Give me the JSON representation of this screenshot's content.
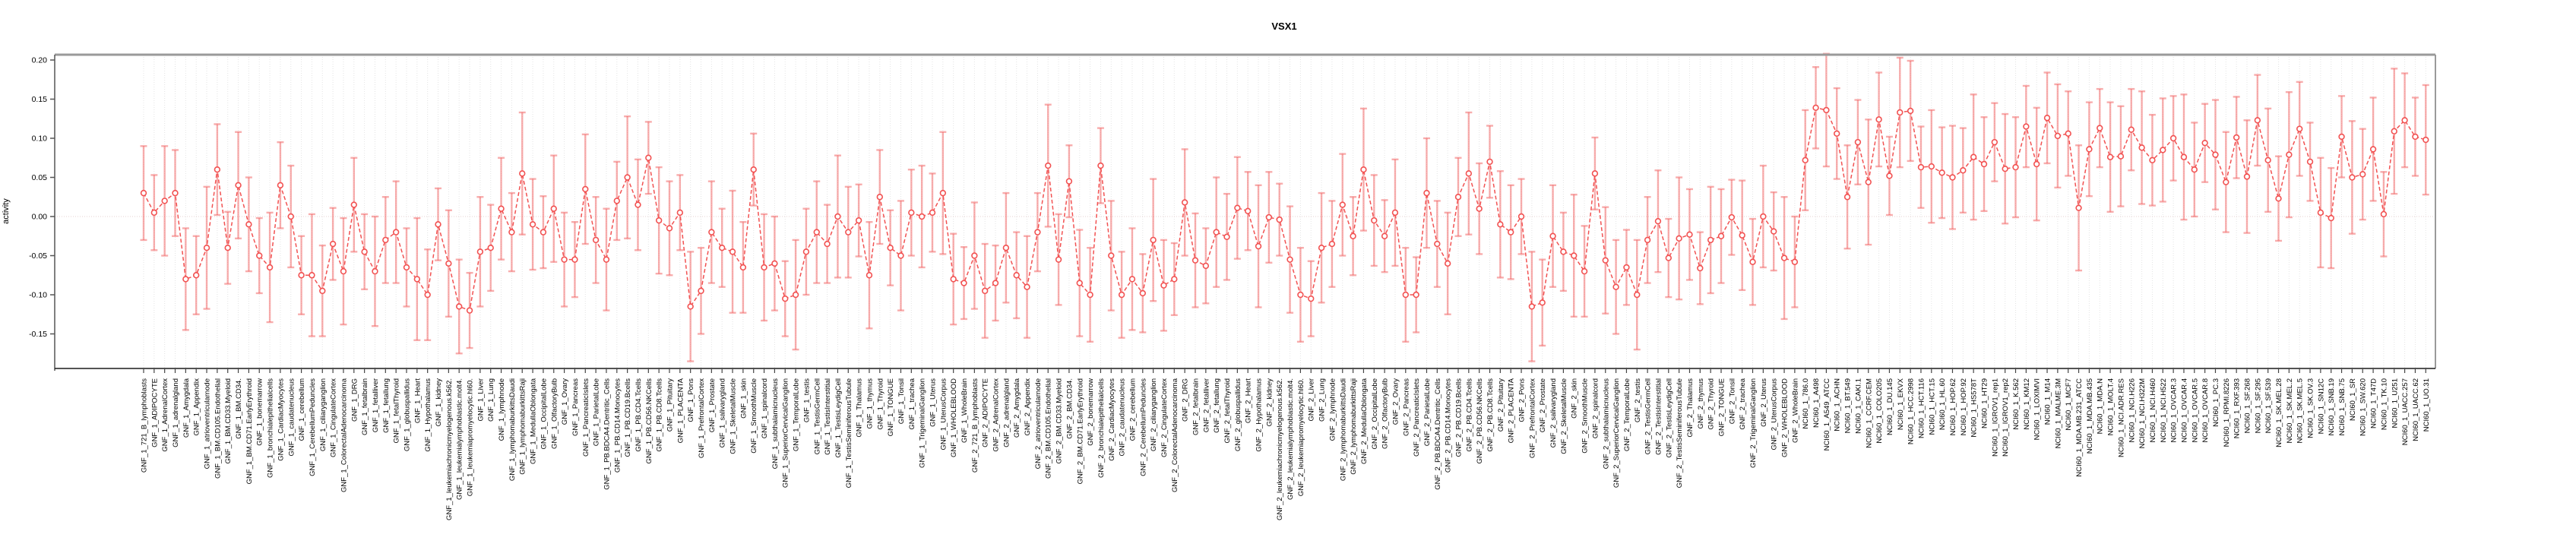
{
  "title": "VSX1",
  "chart_data": {
    "type": "scatter",
    "title": "VSX1",
    "xlabel": "",
    "ylabel": "activity",
    "ylim": [
      -0.175,
      0.205
    ],
    "yticks": [
      -0.15,
      -0.1,
      -0.05,
      0.0,
      0.05,
      0.1,
      0.15,
      0.2
    ],
    "grid": "vertical dotted gridline per category; dotted horizontal line at 0",
    "legend_position": "none",
    "marker": "open-circle with error bars, dashed connecting line",
    "point_color": "#f25252",
    "errorbar_color": "rgba(242,106,106,0.55)",
    "gridline_color": "#e4e4e4",
    "zero_line_color": "#e6d0d0",
    "categories": [
      "GNF_1_721_B_lymphoblasts",
      "GNF_1_ADIPOCYTE",
      "GNF_1_AdrenalCortex",
      "GNF_1_adrenalgland",
      "GNF_1_Amygdala",
      "GNF_1_Appendix",
      "GNF_1_atrioventricularnode",
      "GNF_1_BM.CD105.Endothelial",
      "GNF_1_BM.CD33.Myeloid",
      "GNF_1_BM.CD34.",
      "GNF_1_BM.CD71.EarlyErythroid",
      "GNF_1_bonemarrow",
      "GNF_1_bronchialepithelialcells",
      "GNF_1_CardiacMyocytes",
      "GNF_1_caudatenucleus",
      "GNF_1_cerebellum",
      "GNF_1_CerebellumPeduncles",
      "GNF_1_ciliaryganglion",
      "GNF_1_CingulateCortex",
      "GNF_1_ColorectalAdenocarcinoma",
      "GNF_1_DRG",
      "GNF_1_fetalbrain",
      "GNF_1_fetalliver",
      "GNF_1_fetallung",
      "GNF_1_fetalThyroid",
      "GNF_1_globuspallidus",
      "GNF_1_Heart",
      "GNF_1_Hypothalamus",
      "GNF_1_kidney",
      "GNF_1_leukemiachronicmyelogenous.k562.",
      "GNF_1_leukemialymphoblastic.molt4.",
      "GNF_1_leukemiapromyelocytic.hl60.",
      "GNF_1_Liver",
      "GNF_1_Lung",
      "GNF_1_lymphnode",
      "GNF_1_lymphomaburkittsDaudi",
      "GNF_1_lymphomaburkittsRaji",
      "GNF_1_MedullaOblongata",
      "GNF_1_OccipitalLobe",
      "GNF_1_OlfactoryBulb",
      "GNF_1_Ovary",
      "GNF_1_Pancreas",
      "GNF_1_PancreaticIslets",
      "GNF_1_ParietalLobe",
      "GNF_1_PB.BDCA4.Dentritic_Cells",
      "GNF_1_PB.CD14.Monocytes",
      "GNF_1_PB.CD19.Bcells",
      "GNF_1_PB.CD4.Tcells",
      "GNF_1_PB.CD56.NKCells",
      "GNF_1_PB.CD8.Tcells",
      "GNF_1_Pituitary",
      "GNF_1_PLACENTA",
      "GNF_1_Pons",
      "GNF_1_PrefrontalCortex",
      "GNF_1_Prostate",
      "GNF_1_salivarygland",
      "GNF_1_SkeletalMuscle",
      "GNF_1_skin",
      "GNF_1_SmoothMuscle",
      "GNF_1_spinalcord",
      "GNF_1_subthalamicnucleus",
      "GNF_1_SuperiorCervicalGanglion",
      "GNF_1_TemporalLobe",
      "GNF_1_testis",
      "GNF_1_TestisGermCell",
      "GNF_1_TestisInterstitial",
      "GNF_1_TestisLeydigCell",
      "GNF_1_TestisSeminiferousTubule",
      "GNF_1_Thalamus",
      "GNF_1_thymus",
      "GNF_1_Thyroid",
      "GNF_1_TONGUE",
      "GNF_1_Tonsil",
      "GNF_1_trachea",
      "GNF_1_TrigeminalGanglion",
      "GNF_1_Uterus",
      "GNF_1_UterusCorpus",
      "GNF_1_WHOLEBLOOD",
      "GNF_1_WholeBrain",
      "GNF_2_721_B_lymphoblasts",
      "GNF_2_ADIPOCYTE",
      "GNF_2_AdrenalCortex",
      "GNF_2_adrenalgland",
      "GNF_2_Amygdala",
      "GNF_2_Appendix",
      "GNF_2_atrioventricularnode",
      "GNF_2_BM.CD105.Endothelial",
      "GNF_2_BM.CD33.Myeloid",
      "GNF_2_BM.CD34.",
      "GNF_2_BM.CD71.EarlyErythroid",
      "GNF_2_bonemarrow",
      "GNF_2_bronchialepithelialcells",
      "GNF_2_CardiacMyocytes",
      "GNF_2_caudatenucleus",
      "GNF_2_cerebellum",
      "GNF_2_CerebellumPeduncles",
      "GNF_2_ciliaryganglion",
      "GNF_2_CingulateCortex",
      "GNF_2_ColorectalAdenocarcinoma",
      "GNF_2_DRG",
      "GNF_2_fetalbrain",
      "GNF_2_fetalliver",
      "GNF_2_fetallung",
      "GNF_2_fetalThyroid",
      "GNF_2_globuspallidus",
      "GNF_2_Heart",
      "GNF_2_Hypothalamus",
      "GNF_2_kidney",
      "GNF_2_leukemiachronicmyelogenous.k562.",
      "GNF_2_leukemialymphoblastic.molt4.",
      "GNF_2_leukemiapromyelocytic.hl60.",
      "GNF_2_Liver",
      "GNF_2_Lung",
      "GNF_2_lymphnode",
      "GNF_2_lymphomaburkittsDaudi",
      "GNF_2_lymphomaburkittsRaji",
      "GNF_2_MedullaOblongata",
      "GNF_2_OccipitalLobe",
      "GNF_2_OlfactoryBulb",
      "GNF_2_Ovary",
      "GNF_2_Pancreas",
      "GNF_2_PancreaticIslets",
      "GNF_2_ParietalLobe",
      "GNF_2_PB.BDCA4.Dentritic_Cells",
      "GNF_2_PB.CD14.Monocytes",
      "GNF_2_PB.CD19.Bcells",
      "GNF_2_PB.CD4.Tcells",
      "GNF_2_PB.CD56.NKCells",
      "GNF_2_PB.CD8.Tcells",
      "GNF_2_Pituitary",
      "GNF_2_PLACENTA",
      "GNF_2_Pons",
      "GNF_2_PrefrontalCortex",
      "GNF_2_Prostate",
      "GNF_2_salivarygland",
      "GNF_2_SkeletalMuscle",
      "GNF_2_skin",
      "GNF_2_SmoothMuscle",
      "GNF_2_spinalcord",
      "GNF_2_subthalamicnucleus",
      "GNF_2_SuperiorCervicalGanglion",
      "GNF_2_TemporalLobe",
      "GNF_2_testis",
      "GNF_2_TestisGermCell",
      "GNF_2_TestisInterstitial",
      "GNF_2_TestisLeydigCell",
      "GNF_2_TestisSeminiferousTubule",
      "GNF_2_Thalamus",
      "GNF_2_thymus",
      "GNF_2_Thyroid",
      "GNF_2_TONGUE",
      "GNF_2_Tonsil",
      "GNF_2_trachea",
      "GNF_2_TrigeminalGanglion",
      "GNF_2_Uterus",
      "GNF_2_UterusCorpus",
      "GNF_2_WHOLEBLOOD",
      "GNF_2_WholeBrain",
      "NCI60_1_786.0",
      "NCI60_1_A498",
      "NCI60_1_A549_ATCC",
      "NCI60_1_ACHN",
      "NCI60_1_BT.549",
      "NCI60_1_CAKI.1",
      "NCI60_1_CCRF.CEM",
      "NCI60_1_COLO205",
      "NCI60_1_DU.145",
      "NCI60_1_EKVX",
      "NCI60_1_HCC.2998",
      "NCI60_1_HCT.116",
      "NCI60_1_HCT.15",
      "NCI60_1_HL.60",
      "NCI60_1_HOP.62",
      "NCI60_1_HOP.92",
      "NCI60_1_HS578T",
      "NCI60_1_HT29",
      "NCI60_1_IGROV1_rep1",
      "NCI60_1_IGROV1_rep2",
      "NCI60_1_K.562",
      "NCI60_1_KM12",
      "NCI60_1_LOXIMVI",
      "NCI60_1_M14",
      "NCI60_1_MALME.3M",
      "NCI60_1_MCF7",
      "NCI60_1_MDA.MB.231_ATCC",
      "NCI60_1_MDA.MB.435",
      "NCI60_1_MDA.N",
      "NCI60_1_MOLT.4",
      "NCI60_1_NCI.ADR.RES",
      "NCI60_1_NCI.H226",
      "NCI60_1_NCI.H322M",
      "NCI60_1_NCI.H460",
      "NCI60_1_NCI.H522",
      "NCI60_1_OVCAR.3",
      "NCI60_1_OVCAR.4",
      "NCI60_1_OVCAR.5",
      "NCI60_1_OVCAR.8",
      "NCI60_1_PC.3",
      "NCI60_1_RPMI.8226",
      "NCI60_1_RXF.393",
      "NCI60_1_SF.268",
      "NCI60_1_SF.295",
      "NCI60_1_SF.539",
      "NCI60_1_SK.MEL.28",
      "NCI60_1_SK.MEL.2",
      "NCI60_1_SK.MEL.5",
      "NCI60_1_SK.OV.3",
      "NCI60_1_SN12C",
      "NCI60_1_SNB.19",
      "NCI60_1_SNB.75",
      "NCI60_1_SR",
      "NCI60_1_SW.620",
      "NCI60_1_T47D",
      "NCI60_1_TK.10",
      "NCI60_1_U251",
      "NCI60_1_UACC.257",
      "NCI60_1_UACC.62",
      "NCI60_1_UO.31"
    ],
    "values": [
      0.03,
      0.005,
      0.02,
      0.03,
      -0.08,
      -0.075,
      -0.04,
      0.06,
      -0.04,
      0.04,
      -0.01,
      -0.05,
      -0.065,
      0.04,
      0.0,
      -0.075,
      -0.075,
      -0.095,
      -0.035,
      -0.07,
      0.015,
      -0.045,
      -0.07,
      -0.03,
      -0.02,
      -0.065,
      -0.08,
      -0.1,
      -0.01,
      -0.06,
      -0.115,
      -0.12,
      -0.045,
      -0.04,
      0.01,
      -0.02,
      0.055,
      -0.01,
      -0.02,
      0.01,
      -0.055,
      -0.055,
      0.035,
      -0.03,
      -0.055,
      0.02,
      0.05,
      0.015,
      0.075,
      -0.005,
      -0.015,
      0.005,
      -0.115,
      -0.095,
      -0.02,
      -0.04,
      -0.045,
      -0.065,
      0.06,
      -0.065,
      -0.06,
      -0.105,
      -0.1,
      -0.045,
      -0.02,
      -0.035,
      0.0,
      -0.02,
      -0.005,
      -0.075,
      0.025,
      -0.04,
      -0.05,
      0.005,
      0.0,
      0.005,
      0.03,
      -0.08,
      -0.085,
      -0.05,
      -0.095,
      -0.085,
      -0.04,
      -0.075,
      -0.09,
      -0.02,
      0.065,
      -0.055,
      0.045,
      -0.085,
      -0.1,
      0.065,
      -0.05,
      -0.1,
      -0.08,
      -0.098,
      -0.03,
      -0.088,
      -0.08,
      0.018,
      -0.056,
      -0.063,
      -0.02,
      -0.026,
      0.011,
      0.007,
      -0.038,
      -0.001,
      -0.004,
      -0.055,
      -0.1,
      -0.105,
      -0.04,
      -0.035,
      0.015,
      -0.025,
      0.06,
      -0.005,
      -0.025,
      0.005,
      -0.1,
      -0.1,
      0.03,
      -0.035,
      -0.06,
      0.025,
      0.055,
      0.01,
      0.07,
      -0.01,
      -0.02,
      0.0,
      -0.115,
      -0.11,
      -0.025,
      -0.045,
      -0.05,
      -0.07,
      0.055,
      -0.056,
      -0.09,
      -0.065,
      -0.1,
      -0.03,
      -0.006,
      -0.053,
      -0.028,
      -0.023,
      -0.066,
      -0.03,
      -0.025,
      -0.001,
      -0.024,
      -0.058,
      0.0,
      -0.019,
      -0.053,
      -0.058,
      0.072,
      0.139,
      0.136,
      0.106,
      0.025,
      0.095,
      0.044,
      0.124,
      0.052,
      0.133,
      0.135,
      0.063,
      0.064,
      0.056,
      0.05,
      0.059,
      0.076,
      0.067,
      0.095,
      0.061,
      0.063,
      0.115,
      0.067,
      0.126,
      0.103,
      0.106,
      0.011,
      0.086,
      0.113,
      0.076,
      0.077,
      0.111,
      0.088,
      0.072,
      0.085,
      0.1,
      0.076,
      0.06,
      0.094,
      0.079,
      0.044,
      0.101,
      0.051,
      0.123,
      0.072,
      0.023,
      0.079,
      0.112,
      0.07,
      0.005,
      -0.002,
      0.102,
      0.05,
      0.054,
      0.086,
      0.003,
      0.109,
      0.123,
      0.102,
      0.098
    ],
    "errors": [
      0.06,
      0.048,
      0.07,
      0.055,
      0.065,
      0.05,
      0.078,
      0.058,
      0.046,
      0.068,
      0.06,
      0.048,
      0.07,
      0.055,
      0.065,
      0.05,
      0.078,
      0.058,
      0.046,
      0.068,
      0.06,
      0.048,
      0.07,
      0.055,
      0.065,
      0.05,
      0.078,
      0.058,
      0.046,
      0.068,
      0.06,
      0.048,
      0.07,
      0.055,
      0.065,
      0.05,
      0.078,
      0.058,
      0.046,
      0.068,
      0.06,
      0.048,
      0.07,
      0.055,
      0.065,
      0.05,
      0.078,
      0.058,
      0.046,
      0.068,
      0.06,
      0.048,
      0.07,
      0.055,
      0.065,
      0.05,
      0.078,
      0.058,
      0.046,
      0.068,
      0.06,
      0.048,
      0.07,
      0.055,
      0.065,
      0.05,
      0.078,
      0.058,
      0.046,
      0.068,
      0.06,
      0.048,
      0.07,
      0.055,
      0.065,
      0.05,
      0.078,
      0.058,
      0.046,
      0.068,
      0.06,
      0.048,
      0.07,
      0.055,
      0.065,
      0.05,
      0.078,
      0.058,
      0.046,
      0.068,
      0.06,
      0.048,
      0.07,
      0.055,
      0.065,
      0.05,
      0.078,
      0.058,
      0.046,
      0.068,
      0.06,
      0.048,
      0.07,
      0.055,
      0.065,
      0.05,
      0.078,
      0.058,
      0.046,
      0.068,
      0.06,
      0.048,
      0.07,
      0.055,
      0.065,
      0.05,
      0.078,
      0.058,
      0.046,
      0.068,
      0.06,
      0.048,
      0.07,
      0.055,
      0.065,
      0.05,
      0.078,
      0.058,
      0.046,
      0.068,
      0.06,
      0.048,
      0.07,
      0.055,
      0.065,
      0.05,
      0.078,
      0.058,
      0.046,
      0.068,
      0.06,
      0.048,
      0.07,
      0.055,
      0.065,
      0.05,
      0.078,
      0.058,
      0.046,
      0.068,
      0.06,
      0.048,
      0.07,
      0.055,
      0.065,
      0.05,
      0.078,
      0.058,
      0.064,
      0.052,
      0.072,
      0.058,
      0.066,
      0.054,
      0.08,
      0.06,
      0.05,
      0.07,
      0.064,
      0.052,
      0.072,
      0.058,
      0.066,
      0.054,
      0.08,
      0.06,
      0.05,
      0.07,
      0.064,
      0.052,
      0.072,
      0.058,
      0.066,
      0.054,
      0.08,
      0.06,
      0.05,
      0.07,
      0.064,
      0.052,
      0.072,
      0.058,
      0.066,
      0.054,
      0.08,
      0.06,
      0.05,
      0.07,
      0.064,
      0.052,
      0.072,
      0.058,
      0.066,
      0.054,
      0.08,
      0.06,
      0.05,
      0.07,
      0.064,
      0.052,
      0.072,
      0.058,
      0.066,
      0.054,
      0.08,
      0.06,
      0.05,
      0.07
    ]
  }
}
